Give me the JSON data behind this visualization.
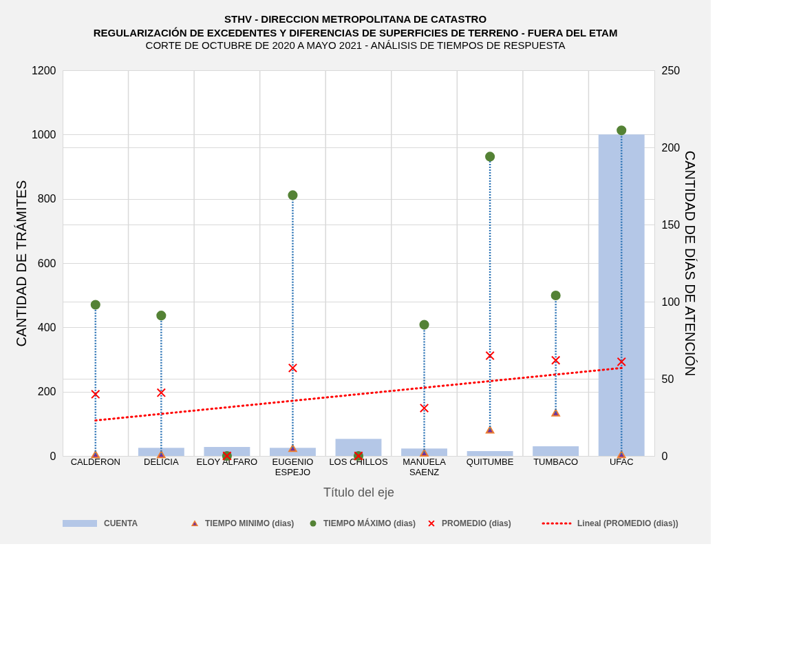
{
  "chart_data": {
    "type": "bar",
    "title": "STHV - DIRECCION METROPOLITANA DE CATASTRO\nREGULARIZACIÓN DE EXCEDENTES Y DIFERENCIAS DE SUPERFICIES DE TERRENO - FUERA DEL ETAM",
    "subtitle": "CORTE DE OCTUBRE DE 2020 A MAYO 2021  - ANÁLISIS DE TIEMPOS DE RESPUESTA",
    "xlabel": "Título del eje",
    "ylabel": "CANTIDAD DE TRÁMITES",
    "y2label": "CANTIDAD DE DÍAS DE ATENCIÓN",
    "categories": [
      "CALDERON",
      "DELICIA",
      "ELOY ALFARO",
      "EUGENIO ESPEJO",
      "LOS CHILLOS",
      "MANUELA SAENZ",
      "QUITUMBE",
      "TUMBACO",
      "UFAC"
    ],
    "series": [
      {
        "name": "CUENTA",
        "type": "bar",
        "color": "#b4c7e7",
        "values": [
          0,
          25,
          28,
          25,
          53,
          23,
          15,
          30,
          1000
        ]
      },
      {
        "name": "TIEMPO MINIMO (dias)",
        "type": "scatter",
        "marker": "triangle",
        "axis": "y2",
        "color": "#7030a0",
        "values": [
          1,
          1,
          0,
          5,
          0,
          2,
          17,
          28,
          1
        ]
      },
      {
        "name": "TIEMPO MÁXIMO (dias)",
        "type": "scatter",
        "marker": "circle",
        "axis": "y2",
        "color": "#548235",
        "values": [
          98,
          91,
          0,
          169,
          0,
          85,
          194,
          104,
          211
        ]
      },
      {
        "name": "PROMEDIO (dias)",
        "type": "scatter",
        "marker": "cross",
        "axis": "y2",
        "color": "#ff0000",
        "values": [
          40,
          41,
          0,
          57,
          0,
          31,
          65,
          62,
          61
        ]
      },
      {
        "name": "Lineal (PROMEDIO (dias))",
        "type": "line",
        "line_style": "dotted",
        "axis": "y2",
        "color": "#ff0000",
        "x": [
          "CALDERON",
          "UFAC"
        ],
        "values": [
          23,
          57
        ]
      }
    ],
    "ylim": [
      0,
      1200
    ],
    "yticks": [
      0,
      200,
      400,
      600,
      800,
      1000,
      1200
    ],
    "y2lim": [
      0,
      250
    ],
    "y2ticks": [
      0,
      50,
      100,
      150,
      200,
      250
    ],
    "grid": true,
    "legend": "bottom"
  }
}
